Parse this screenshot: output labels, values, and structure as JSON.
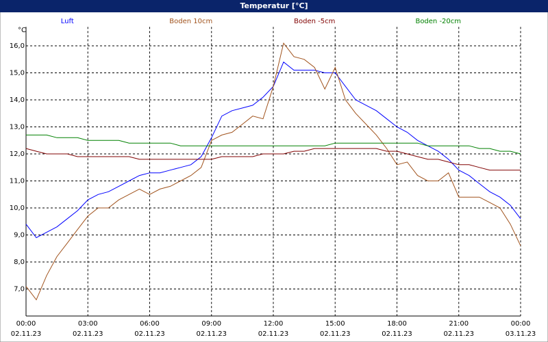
{
  "chart_data": {
    "type": "line",
    "title": "Temperatur [°C]",
    "y_unit": "°C",
    "x": [
      0,
      0.5,
      1,
      1.5,
      2,
      2.5,
      3,
      3.5,
      4,
      4.5,
      5,
      5.5,
      6,
      6.5,
      7,
      7.5,
      8,
      8.5,
      9,
      9.5,
      10,
      10.5,
      11,
      11.5,
      12,
      12.5,
      13,
      13.5,
      14,
      14.5,
      15,
      15.5,
      16,
      16.5,
      17,
      17.5,
      18,
      18.5,
      19,
      19.5,
      20,
      20.5,
      21,
      21.5,
      22,
      22.5,
      23,
      23.5,
      24
    ],
    "series": [
      {
        "name": "Luft",
        "color": "#0000ff",
        "values": [
          9.4,
          8.9,
          9.1,
          9.3,
          9.6,
          9.9,
          10.3,
          10.5,
          10.6,
          10.8,
          11.0,
          11.2,
          11.3,
          11.3,
          11.4,
          11.5,
          11.6,
          11.9,
          12.6,
          13.4,
          13.6,
          13.7,
          13.8,
          14.1,
          14.5,
          15.4,
          15.1,
          15.1,
          15.1,
          15.0,
          15.0,
          14.5,
          14.0,
          13.8,
          13.6,
          13.3,
          13.0,
          12.8,
          12.5,
          12.3,
          12.1,
          11.8,
          11.4,
          11.2,
          10.9,
          10.6,
          10.4,
          10.1,
          9.6
        ]
      },
      {
        "name": "Boden 10cm",
        "color": "#a0521c",
        "values": [
          7.1,
          6.6,
          7.5,
          8.2,
          8.7,
          9.2,
          9.7,
          10.0,
          10.0,
          10.3,
          10.5,
          10.7,
          10.5,
          10.7,
          10.8,
          11.0,
          11.2,
          11.5,
          12.5,
          12.7,
          12.8,
          13.1,
          13.4,
          13.3,
          14.5,
          16.1,
          15.6,
          15.5,
          15.2,
          14.4,
          15.2,
          14.0,
          13.5,
          13.1,
          12.7,
          12.2,
          11.6,
          11.7,
          11.2,
          11.0,
          11.0,
          11.3,
          10.4,
          10.4,
          10.4,
          10.2,
          10.0,
          9.4,
          8.6
        ]
      },
      {
        "name": "Boden -5cm",
        "color": "#800000",
        "values": [
          12.2,
          12.1,
          12.0,
          12.0,
          12.0,
          11.9,
          11.9,
          11.9,
          11.9,
          11.9,
          11.9,
          11.8,
          11.8,
          11.8,
          11.8,
          11.8,
          11.8,
          11.8,
          11.8,
          11.9,
          11.9,
          11.9,
          11.9,
          12.0,
          12.0,
          12.0,
          12.1,
          12.1,
          12.2,
          12.2,
          12.2,
          12.2,
          12.2,
          12.2,
          12.2,
          12.1,
          12.1,
          12.0,
          11.9,
          11.8,
          11.8,
          11.7,
          11.6,
          11.6,
          11.5,
          11.4,
          11.4,
          11.4,
          11.4
        ]
      },
      {
        "name": "Boden -20cm",
        "color": "#008000",
        "values": [
          12.7,
          12.7,
          12.7,
          12.6,
          12.6,
          12.6,
          12.5,
          12.5,
          12.5,
          12.5,
          12.4,
          12.4,
          12.4,
          12.4,
          12.4,
          12.3,
          12.3,
          12.3,
          12.3,
          12.3,
          12.3,
          12.3,
          12.3,
          12.3,
          12.3,
          12.3,
          12.3,
          12.3,
          12.3,
          12.3,
          12.4,
          12.4,
          12.4,
          12.4,
          12.4,
          12.4,
          12.4,
          12.4,
          12.4,
          12.3,
          12.3,
          12.3,
          12.3,
          12.3,
          12.2,
          12.2,
          12.1,
          12.1,
          12.0
        ]
      }
    ],
    "xlim": [
      0,
      24
    ],
    "xticks": [
      {
        "value": 0,
        "label": "00:00"
      },
      {
        "value": 3,
        "label": "03:00"
      },
      {
        "value": 6,
        "label": "06:00"
      },
      {
        "value": 9,
        "label": "09:00"
      },
      {
        "value": 12,
        "label": "12:00"
      },
      {
        "value": 15,
        "label": "15:00"
      },
      {
        "value": 18,
        "label": "18:00"
      },
      {
        "value": 21,
        "label": "21:00"
      },
      {
        "value": 24,
        "label": "00:00"
      }
    ],
    "xtick_dates": [
      "02.11.23",
      "02.11.23",
      "02.11.23",
      "02.11.23",
      "02.11.23",
      "02.11.23",
      "02.11.23",
      "02.11.23",
      "03.11.23"
    ],
    "ylim": [
      6,
      16.7
    ],
    "yticks": [
      {
        "value": 7,
        "label": "7,0"
      },
      {
        "value": 8,
        "label": "8,0"
      },
      {
        "value": 9,
        "label": "9,0"
      },
      {
        "value": 10,
        "label": "10,0"
      },
      {
        "value": 11,
        "label": "11,0"
      },
      {
        "value": 12,
        "label": "12,0"
      },
      {
        "value": 13,
        "label": "13,0"
      },
      {
        "value": 14,
        "label": "14,0"
      },
      {
        "value": 15,
        "label": "15,0"
      },
      {
        "value": 16,
        "label": "16,0"
      }
    ],
    "grid": true
  }
}
